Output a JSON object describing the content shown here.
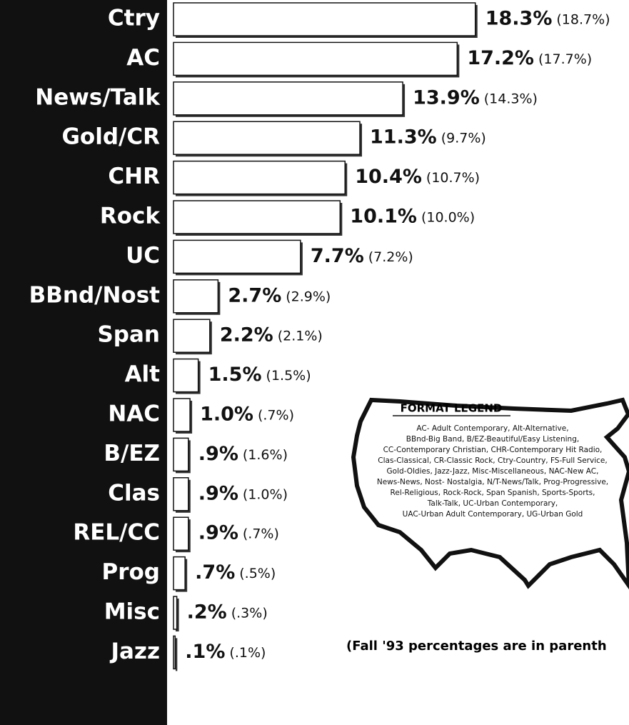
{
  "chart_data": {
    "type": "bar",
    "orientation": "horizontal",
    "color": "#ffffff",
    "categories": [
      "Ctry",
      "AC",
      "News/Talk",
      "Gold/CR",
      "CHR",
      "Rock",
      "UC",
      "BBnd/Nost",
      "Span",
      "Alt",
      "NAC",
      "B/EZ",
      "Clas",
      "REL/CC",
      "Prog",
      "Misc",
      "Jazz"
    ],
    "values": [
      18.3,
      17.2,
      13.9,
      11.3,
      10.4,
      10.1,
      7.7,
      2.7,
      2.2,
      1.5,
      1.0,
      0.9,
      0.9,
      0.9,
      0.7,
      0.2,
      0.1
    ],
    "value_labels": [
      "18.3%",
      "17.2%",
      "13.9%",
      "11.3%",
      "10.4%",
      "10.1%",
      "7.7%",
      "2.7%",
      "2.2%",
      "1.5%",
      "1.0%",
      ".9%",
      ".9%",
      ".9%",
      ".7%",
      ".2%",
      ".1%"
    ],
    "prior_values": [
      18.7,
      17.7,
      14.3,
      9.7,
      10.7,
      10.0,
      7.2,
      2.9,
      2.1,
      1.5,
      0.7,
      1.6,
      1.0,
      0.7,
      0.5,
      0.3,
      0.1
    ],
    "prior_labels": [
      "(18.7%)",
      "(17.7%)",
      "(14.3%)",
      "(9.7%)",
      "(10.7%)",
      "(10.0%)",
      "(7.2%)",
      "(2.9%)",
      "(2.1%)",
      "(1.5%)",
      "(.7%)",
      "(1.6%)",
      "(1.0%)",
      "(.7%)",
      "(.5%)",
      "(.3%)",
      "(.1%)"
    ],
    "legend_title": "FORMAT LEGEND",
    "legend_lines": [
      "AC- Adult Contemporary, Alt-Alternative,",
      "BBnd-Big Band, B/EZ-Beautiful/Easy Listening,",
      "CC-Contemporary Christian, CHR-Contemporary Hit Radio,",
      "Clas-Classical, CR-Classic Rock, Ctry-Country, FS-Full Service,",
      "Gold-Oldies, Jazz-Jazz, Misc-Miscellaneous, NAC-New AC,",
      "News-News, Nost- Nostalgia, N/T-News/Talk, Prog-Progressive,",
      "Rel-Religious, Rock-Rock, Span Spanish, Sports-Sports,",
      "Talk-Talk, UC-Urban Contemporary,",
      "UAC-Urban Adult Contemporary, UG-Urban Gold"
    ],
    "note": "(Fall '93 percentages are in parenth"
  }
}
